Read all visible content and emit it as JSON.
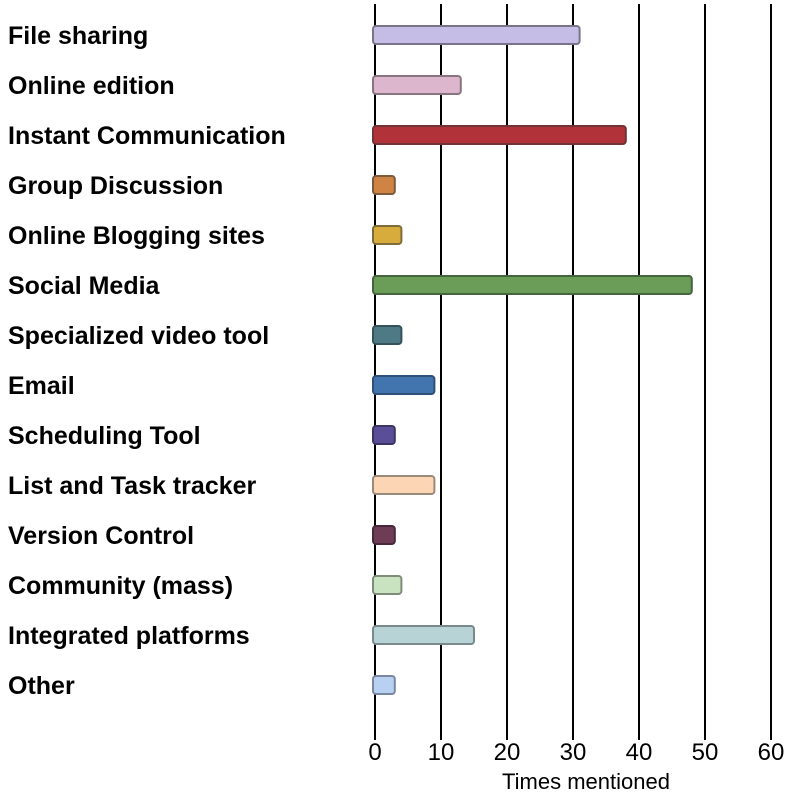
{
  "chart_data": {
    "type": "bar",
    "orientation": "horizontal",
    "title": "",
    "xlabel": "Times mentioned",
    "ylabel": "",
    "xlim": [
      0,
      60
    ],
    "xticks": [
      "0",
      "10",
      "20",
      "30",
      "40",
      "50",
      "60"
    ],
    "grid": "vertical lines at each x tick",
    "legend": "none",
    "categories": [
      "File sharing",
      "Online edition",
      "Instant Communication",
      "Group Discussion",
      "Online Blogging sites",
      "Social Media",
      "Specialized video tool",
      "Email",
      "Scheduling Tool",
      "List and Task tracker",
      "Version Control",
      "Community (mass)",
      "Integrated platforms",
      "Other"
    ],
    "values": [
      31,
      13,
      38,
      3,
      4,
      48,
      4,
      9,
      3,
      9,
      3,
      4,
      15,
      3
    ],
    "colors": [
      "#c6bde6",
      "#dcb6cc",
      "#b13239",
      "#cf8444",
      "#d7ac3c",
      "#6b9c58",
      "#4e7a86",
      "#4274ad",
      "#5b4e98",
      "#fcd6b4",
      "#6e3c55",
      "#c9e2c0",
      "#b7d3d6",
      "#b8d0f1"
    ],
    "stroke_colors": [
      "#7a7488",
      "#8a7480",
      "#6f3338",
      "#7c5a3c",
      "#7f6c3a",
      "#476440",
      "#34525a",
      "#2e5079",
      "#3b3563",
      "#9a8a7a",
      "#46283a",
      "#7f8c7a",
      "#7a8a8c",
      "#7788a0"
    ]
  }
}
